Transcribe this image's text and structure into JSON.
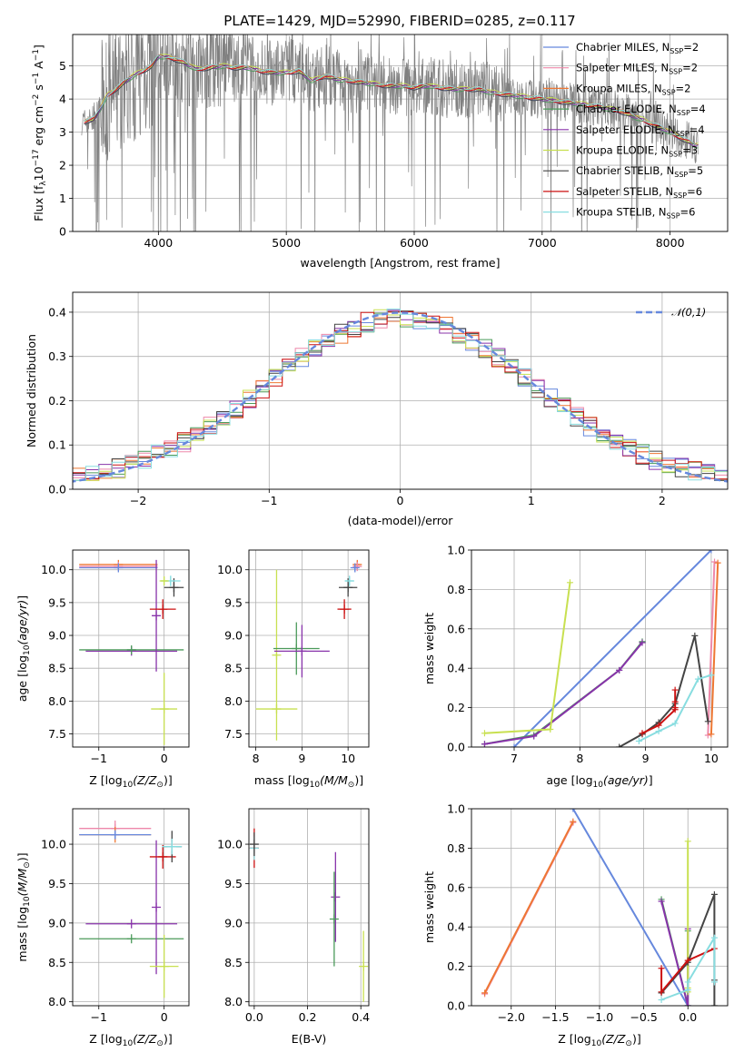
{
  "figure": {
    "title": "PLATE=1429, MJD=52990, FIBERID=0285, z=0.117"
  },
  "models": [
    {
      "name": "Chabrier MILES",
      "nssp": "2",
      "color": "#6688dd"
    },
    {
      "name": "Salpeter MILES",
      "nssp": "2",
      "color": "#ee88aa"
    },
    {
      "name": "Kroupa MILES",
      "nssp": "2",
      "color": "#ee7733"
    },
    {
      "name": "Chabrier ELODIE",
      "nssp": "4",
      "color": "#4b9a5a"
    },
    {
      "name": "Salpeter ELODIE",
      "nssp": "4",
      "color": "#8833aa"
    },
    {
      "name": "Kroupa ELODIE",
      "nssp": "3",
      "color": "#c8e050"
    },
    {
      "name": "Chabrier STELIB",
      "nssp": "5",
      "color": "#444444"
    },
    {
      "name": "Salpeter STELIB",
      "nssp": "6",
      "color": "#cc1111"
    },
    {
      "name": "Kroupa STELIB",
      "nssp": "6",
      "color": "#88dde0"
    }
  ],
  "chart_data": [
    {
      "type": "line",
      "title": "PLATE=1429, MJD=52990, FIBERID=0285, z=0.117",
      "xlabel": "wavelength [Angstrom, rest frame]",
      "ylabel": "Flux [f_λ 10^-17 erg cm^-2 s^-1 A^-1]",
      "xlim": [
        3330,
        8450
      ],
      "ylim": [
        0,
        5.95
      ],
      "xticks": [
        4000,
        5000,
        6000,
        7000,
        8000
      ],
      "yticks": [
        0,
        1,
        2,
        3,
        4,
        5
      ],
      "data_series": "observed spectrum (gray)",
      "model_continuum": {
        "x": [
          3400,
          3500,
          3600,
          3700,
          3800,
          3900,
          3950,
          4000,
          4100,
          4200,
          4300,
          4400,
          4500,
          4600,
          4700,
          4800,
          4900,
          5000,
          5100,
          5200,
          5300,
          5400,
          5500,
          5600,
          5700,
          5800,
          5900,
          6000,
          6100,
          6200,
          6300,
          6400,
          6500,
          6600,
          6700,
          6800,
          6900,
          7000,
          7200,
          7400,
          7600,
          7800,
          8000,
          8200
        ],
        "y": [
          3.3,
          3.4,
          4.1,
          4.4,
          4.7,
          4.9,
          5.0,
          5.3,
          5.25,
          5.1,
          4.9,
          4.95,
          5.0,
          4.95,
          4.95,
          4.85,
          4.8,
          4.8,
          4.85,
          4.55,
          4.7,
          4.6,
          4.55,
          4.5,
          4.45,
          4.4,
          4.4,
          4.35,
          4.4,
          4.35,
          4.3,
          4.3,
          4.3,
          4.2,
          4.15,
          4.1,
          4.05,
          4.0,
          3.9,
          3.8,
          3.65,
          3.35,
          3.0,
          2.6
        ]
      },
      "legend": "top-right"
    },
    {
      "type": "line",
      "xlabel": "(data-model)/error",
      "ylabel": "Normed distribution",
      "xlim": [
        -2.5,
        2.5
      ],
      "ylim": [
        0,
        0.445
      ],
      "xticks": [
        -2,
        -1,
        0,
        1,
        2
      ],
      "yticks": [
        0.0,
        0.1,
        0.2,
        0.3,
        0.4
      ],
      "series": [
        {
          "name": "𝒩(0,1)",
          "style": "dashed",
          "color": "#6688dd"
        }
      ],
      "histograms": "step histograms of residuals, one per model (colors as legend of panel 1)",
      "legend": "top-right"
    },
    {
      "type": "scatter",
      "xlabel": "Z [log10(Z/Z☉)]",
      "ylabel": "age [log10(age/yr)]",
      "xlim": [
        -1.4,
        0.38
      ],
      "ylim": [
        7.3,
        10.3
      ],
      "xticks": [
        -1,
        0
      ],
      "yticks": [
        7.5,
        8.0,
        8.5,
        9.0,
        9.5,
        10.0
      ],
      "points": [
        {
          "model": 2,
          "x": -0.7,
          "y": 10.08,
          "xerr": 0.6,
          "yerr": 0.02
        },
        {
          "model": 1,
          "x": -0.7,
          "y": 10.05,
          "xerr": 0.6,
          "yerr": 0.02
        },
        {
          "model": 0,
          "x": -0.7,
          "y": 10.03,
          "xerr": 0.6,
          "yerr": 0.02
        },
        {
          "model": 4,
          "x": -0.5,
          "y": 8.76,
          "xerr": 0.7,
          "yerr": 0.0
        },
        {
          "model": 3,
          "x": -0.5,
          "y": 8.78,
          "xerr": 0.8,
          "yerr": 0.0
        },
        {
          "model": 4,
          "x": -0.12,
          "y": 9.3,
          "xerr": 0.0,
          "yerr": 0.85
        },
        {
          "model": 7,
          "x": -0.02,
          "y": 9.4,
          "xerr": 0.2,
          "yerr": 0.15
        },
        {
          "model": 6,
          "x": 0.15,
          "y": 9.73,
          "xerr": 0.15,
          "yerr": 0.14
        },
        {
          "model": 8,
          "x": 0.1,
          "y": 9.83,
          "xerr": 0.15,
          "yerr": 0.08
        },
        {
          "model": 5,
          "x": 0.0,
          "y": 9.83,
          "xerr": 0.05,
          "yerr": 0.0
        },
        {
          "model": 5,
          "x": 0.0,
          "y": 7.88,
          "xerr": 0.2,
          "yerr": 0.55
        }
      ]
    },
    {
      "type": "scatter",
      "xlabel": "mass [log10(M/M☉)]",
      "ylabel": "",
      "xlim": [
        7.85,
        10.45
      ],
      "ylim": [
        7.3,
        10.3
      ],
      "xticks": [
        8,
        9,
        10
      ],
      "yticks": [
        7.5,
        8.0,
        8.5,
        9.0,
        9.5,
        10.0
      ],
      "points": [
        {
          "model": 2,
          "x": 10.2,
          "y": 10.08,
          "xerr": 0.05,
          "yerr": 0.05
        },
        {
          "model": 1,
          "x": 10.2,
          "y": 10.05,
          "xerr": 0.05,
          "yerr": 0.05
        },
        {
          "model": 0,
          "x": 10.15,
          "y": 10.03,
          "xerr": 0.05,
          "yerr": 0.05
        },
        {
          "model": 5,
          "x": 8.45,
          "y": 7.88,
          "xerr": 0.45,
          "yerr": 0.0
        },
        {
          "model": 5,
          "x": 8.45,
          "y": 8.7,
          "xerr": 0.0,
          "yerr": 1.3
        },
        {
          "model": 3,
          "x": 8.88,
          "y": 8.8,
          "xerr": 0.5,
          "yerr": 0.4
        },
        {
          "model": 4,
          "x": 9.0,
          "y": 8.76,
          "xerr": 0.6,
          "yerr": 0.4
        },
        {
          "model": 7,
          "x": 9.92,
          "y": 9.4,
          "xerr": 0.15,
          "yerr": 0.15
        },
        {
          "model": 6,
          "x": 10.0,
          "y": 9.73,
          "xerr": 0.2,
          "yerr": 0.14
        },
        {
          "model": 8,
          "x": 10.03,
          "y": 9.83,
          "xerr": 0.1,
          "yerr": 0.08
        }
      ]
    },
    {
      "type": "line",
      "xlabel": "age [log10(age/yr)]",
      "ylabel": "mass weight",
      "xlim": [
        6.35,
        10.25
      ],
      "ylim": [
        0,
        1.0
      ],
      "xticks": [
        7,
        8,
        9,
        10
      ],
      "yticks": [
        0.0,
        0.2,
        0.4,
        0.6,
        0.8,
        1.0
      ],
      "series": [
        {
          "model": 0,
          "x": [
            7.0,
            10.0
          ],
          "y": [
            0.0,
            1.0
          ]
        },
        {
          "model": 1,
          "x": [
            9.95,
            10.05
          ],
          "y": [
            0.06,
            0.94
          ]
        },
        {
          "model": 2,
          "x": [
            10.0,
            10.1
          ],
          "y": [
            0.065,
            0.935
          ]
        },
        {
          "model": 3,
          "x": [
            6.55,
            7.3,
            8.6,
            8.95
          ],
          "y": [
            0.015,
            0.06,
            0.39,
            0.535
          ]
        },
        {
          "model": 4,
          "x": [
            6.55,
            7.3,
            8.6,
            8.95
          ],
          "y": [
            0.015,
            0.055,
            0.39,
            0.53
          ]
        },
        {
          "model": 5,
          "x": [
            6.55,
            7.55,
            7.85
          ],
          "y": [
            0.07,
            0.09,
            0.835
          ]
        },
        {
          "model": 6,
          "x": [
            8.6,
            8.95,
            9.2,
            9.45,
            9.75,
            9.95
          ],
          "y": [
            0.0,
            0.065,
            0.125,
            0.22,
            0.565,
            0.13
          ]
        },
        {
          "model": 7,
          "x": [
            8.95,
            9.2,
            9.45,
            9.45,
            9.45,
            9.45
          ],
          "y": [
            0.07,
            0.11,
            0.19,
            0.23,
            0.29,
            0.2
          ]
        },
        {
          "model": 8,
          "x": [
            8.9,
            9.2,
            9.45,
            9.8,
            10.0
          ],
          "y": [
            0.03,
            0.08,
            0.12,
            0.345,
            0.365
          ]
        }
      ]
    },
    {
      "type": "scatter",
      "xlabel": "Z [log10(Z/Z☉)]",
      "ylabel": "mass [log10(M/M☉)]",
      "xlim": [
        -1.4,
        0.38
      ],
      "ylim": [
        7.95,
        10.45
      ],
      "xticks": [
        -1,
        0
      ],
      "yticks": [
        8.0,
        8.5,
        9.0,
        9.5,
        10.0
      ],
      "points": [
        {
          "model": 1,
          "x": -0.75,
          "y": 10.2,
          "xerr": 0.55,
          "yerr": 0.1
        },
        {
          "model": 2,
          "x": -0.75,
          "y": 10.12,
          "xerr": 0.55,
          "yerr": 0.1
        },
        {
          "model": 0,
          "x": -0.75,
          "y": 10.12,
          "xerr": 0.55,
          "yerr": 0.05
        },
        {
          "model": 4,
          "x": -0.5,
          "y": 8.99,
          "xerr": 0.7,
          "yerr": 0.0
        },
        {
          "model": 3,
          "x": -0.5,
          "y": 8.8,
          "xerr": 0.8,
          "yerr": 0.0
        },
        {
          "model": 4,
          "x": -0.12,
          "y": 9.2,
          "xerr": 0.0,
          "yerr": 0.85
        },
        {
          "model": 5,
          "x": 0.0,
          "y": 8.45,
          "xerr": 0.22,
          "yerr": 0.4
        },
        {
          "model": 7,
          "x": -0.02,
          "y": 9.84,
          "xerr": 0.2,
          "yerr": 0.15
        },
        {
          "model": 6,
          "x": 0.12,
          "y": 9.97,
          "xerr": 0.15,
          "yerr": 0.2
        },
        {
          "model": 8,
          "x": 0.12,
          "y": 9.97,
          "xerr": 0.15,
          "yerr": 0.1
        }
      ]
    },
    {
      "type": "scatter",
      "xlabel": "E(B-V)",
      "ylabel": "",
      "xlim": [
        -0.02,
        0.43
      ],
      "ylim": [
        7.95,
        10.45
      ],
      "xticks": [
        0.0,
        0.2,
        0.4
      ],
      "yticks": [
        8.0,
        8.5,
        9.0,
        9.5,
        10.0
      ],
      "points": [
        {
          "model": 7,
          "x": 0.0,
          "y": 9.95,
          "xerr": 0.0,
          "yerr": 0.25
        },
        {
          "model": 8,
          "x": 0.0,
          "y": 9.95,
          "xerr": 0.0,
          "yerr": 0.15
        },
        {
          "model": 6,
          "x": 0.0,
          "y": 10.0,
          "xerr": 0.0,
          "yerr": 0.15
        },
        {
          "model": 4,
          "x": 0.305,
          "y": 9.33,
          "xerr": 0.0,
          "yerr": 0.57
        },
        {
          "model": 3,
          "x": 0.3,
          "y": 9.05,
          "xerr": 0.0,
          "yerr": 0.6
        },
        {
          "model": 5,
          "x": 0.41,
          "y": 8.45,
          "xerr": 0.0,
          "yerr": 0.45
        }
      ]
    },
    {
      "type": "line",
      "xlabel": "Z [log10(Z/Z☉)]",
      "ylabel": "mass weight",
      "xlim": [
        -2.45,
        0.45
      ],
      "ylim": [
        0,
        1.0
      ],
      "xticks": [
        -2.0,
        -1.5,
        -1.0,
        -0.5,
        0.0
      ],
      "yticks": [
        0.0,
        0.2,
        0.4,
        0.6,
        0.8,
        1.0
      ],
      "series": [
        {
          "model": 0,
          "x": [
            -1.3,
            0.0
          ],
          "y": [
            1.0,
            0.0
          ]
        },
        {
          "model": 1,
          "x": [
            -2.3,
            -1.3
          ],
          "y": [
            0.06,
            0.93
          ]
        },
        {
          "model": 2,
          "x": [
            -2.3,
            -1.3
          ],
          "y": [
            0.065,
            0.935
          ]
        },
        {
          "model": 3,
          "x": [
            -0.3,
            0.0,
            0.0
          ],
          "y": [
            0.54,
            0.0,
            0.38
          ]
        },
        {
          "model": 4,
          "x": [
            -0.3,
            0.0,
            0.0
          ],
          "y": [
            0.53,
            0.0,
            0.39
          ]
        },
        {
          "model": 5,
          "x": [
            0.0,
            0.0,
            0.0
          ],
          "y": [
            0.835,
            0.09,
            0.07
          ]
        },
        {
          "model": 6,
          "x": [
            -0.3,
            0.0,
            0.3,
            0.3,
            0.3
          ],
          "y": [
            0.065,
            0.22,
            0.565,
            0.13,
            0.0
          ]
        },
        {
          "model": 7,
          "x": [
            -0.3,
            -0.3,
            0.0,
            0.3
          ],
          "y": [
            0.19,
            0.07,
            0.23,
            0.29
          ]
        },
        {
          "model": 8,
          "x": [
            -0.3,
            0.0,
            0.0,
            0.3,
            0.3
          ],
          "y": [
            0.03,
            0.08,
            0.12,
            0.345,
            0.12
          ]
        }
      ]
    }
  ]
}
